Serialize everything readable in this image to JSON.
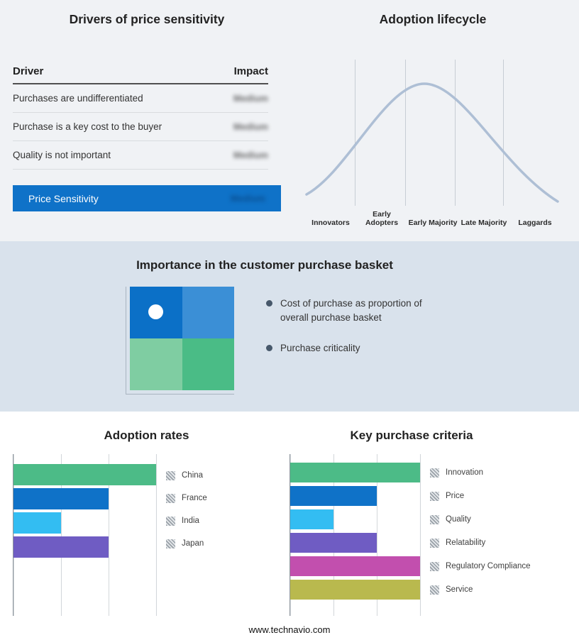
{
  "top_left": {
    "title": "Drivers of price sensitivity",
    "columns": {
      "driver": "Driver",
      "impact": "Impact"
    },
    "rows": [
      {
        "driver": "Purchases are undifferentiated",
        "impact": "Medium"
      },
      {
        "driver": "Purchase is a key cost to the buyer",
        "impact": "Medium"
      },
      {
        "driver": "Quality is not important",
        "impact": "Medium"
      }
    ],
    "summary": {
      "label": "Price Sensitivity",
      "impact": "Medium"
    },
    "bar_color": "#0f72c8"
  },
  "top_right": {
    "title": "Adoption lifecycle",
    "stages": [
      "Innovators",
      "Early Adopters",
      "Early Majority",
      "Late Majority",
      "Laggards"
    ],
    "curve_color": "#aebfd5"
  },
  "middle": {
    "title": "Importance in the customer purchase basket",
    "bullets": [
      "Cost of purchase as proportion of overall purchase basket",
      "Purchase criticality"
    ],
    "quadrant_colors": [
      "#0b70c7",
      "#3b8fd6",
      "#7fcda2",
      "#4abc86"
    ]
  },
  "chart_data": [
    {
      "type": "bar",
      "orientation": "horizontal",
      "title": "Adoption rates",
      "categories": [
        "China",
        "France",
        "India",
        "Japan"
      ],
      "values": [
        3,
        2,
        1,
        2
      ],
      "colors": [
        "#4cbb87",
        "#0f72c8",
        "#33bdf2",
        "#6f5cc3"
      ],
      "xlim": [
        0,
        3
      ],
      "grid": true,
      "legend_position": "right"
    },
    {
      "type": "bar",
      "orientation": "horizontal",
      "title": "Key purchase criteria",
      "categories": [
        "Innovation",
        "Price",
        "Quality",
        "Relatability",
        "Regulatory Compliance",
        "Service"
      ],
      "values": [
        3,
        2,
        1,
        2,
        3,
        3
      ],
      "colors": [
        "#4cbb87",
        "#0f72c8",
        "#33bdf2",
        "#6f5cc3",
        "#c24fae",
        "#b9b94e"
      ],
      "xlim": [
        0,
        3
      ],
      "grid": true,
      "legend_position": "right"
    }
  ],
  "footer": {
    "text": "www.technavio.com"
  }
}
